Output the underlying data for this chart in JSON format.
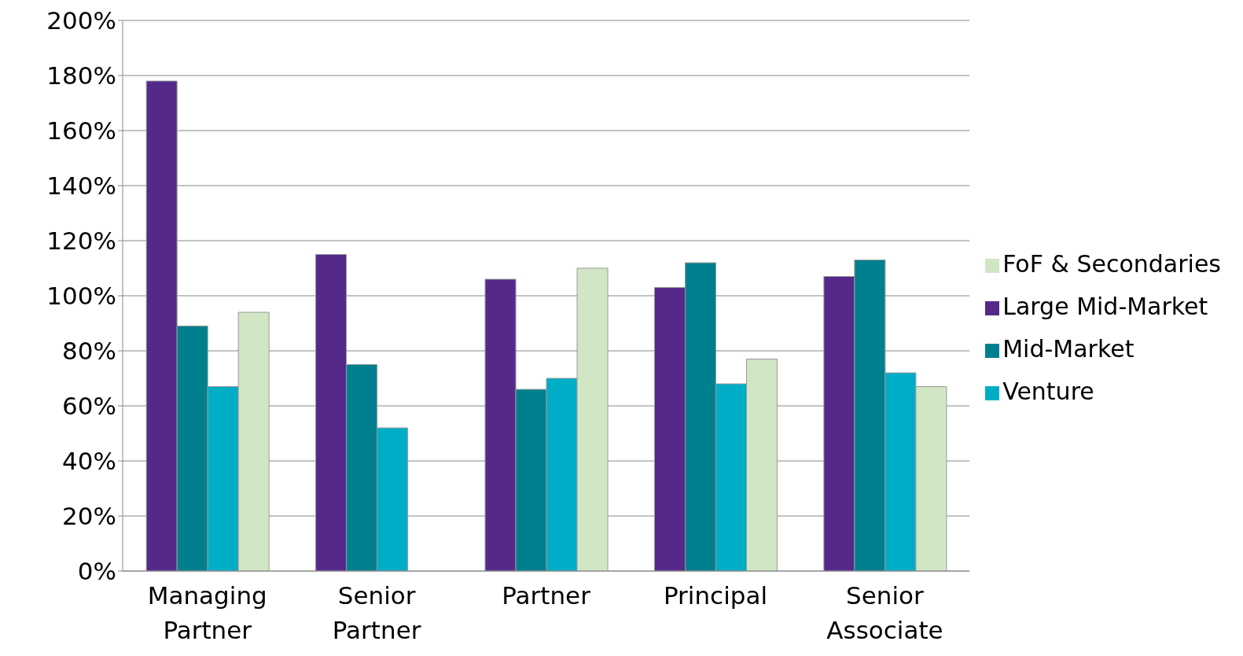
{
  "chart_data": {
    "type": "bar",
    "categories": [
      "Managing Partner",
      "Senior Partner",
      "Partner",
      "Principal",
      "Senior Associate"
    ],
    "series": [
      {
        "name": "Large Mid-Market",
        "color": "#55298a",
        "values": [
          178,
          115,
          106,
          103,
          107
        ]
      },
      {
        "name": "Mid-Market",
        "color": "#00808f",
        "values": [
          89,
          75,
          66,
          112,
          113
        ]
      },
      {
        "name": "Venture",
        "color": "#00adc6",
        "values": [
          67,
          52,
          70,
          68,
          72
        ]
      },
      {
        "name": "FoF & Secondaries",
        "color": "#d0e6c4",
        "values": [
          94,
          null,
          110,
          77,
          67
        ]
      }
    ],
    "ylim": [
      0,
      200
    ],
    "yticks": [
      {
        "value": 0,
        "label": "0%"
      },
      {
        "value": 20,
        "label": "20%"
      },
      {
        "value": 40,
        "label": "40%"
      },
      {
        "value": 60,
        "label": "60%"
      },
      {
        "value": 80,
        "label": "80%"
      },
      {
        "value": 100,
        "label": "100%"
      },
      {
        "value": 120,
        "label": "120%"
      },
      {
        "value": 140,
        "label": "140%"
      },
      {
        "value": 160,
        "label": "160%"
      },
      {
        "value": 180,
        "label": "180%"
      },
      {
        "value": 200,
        "label": "200%"
      }
    ],
    "grid": "y",
    "legend": "right"
  }
}
